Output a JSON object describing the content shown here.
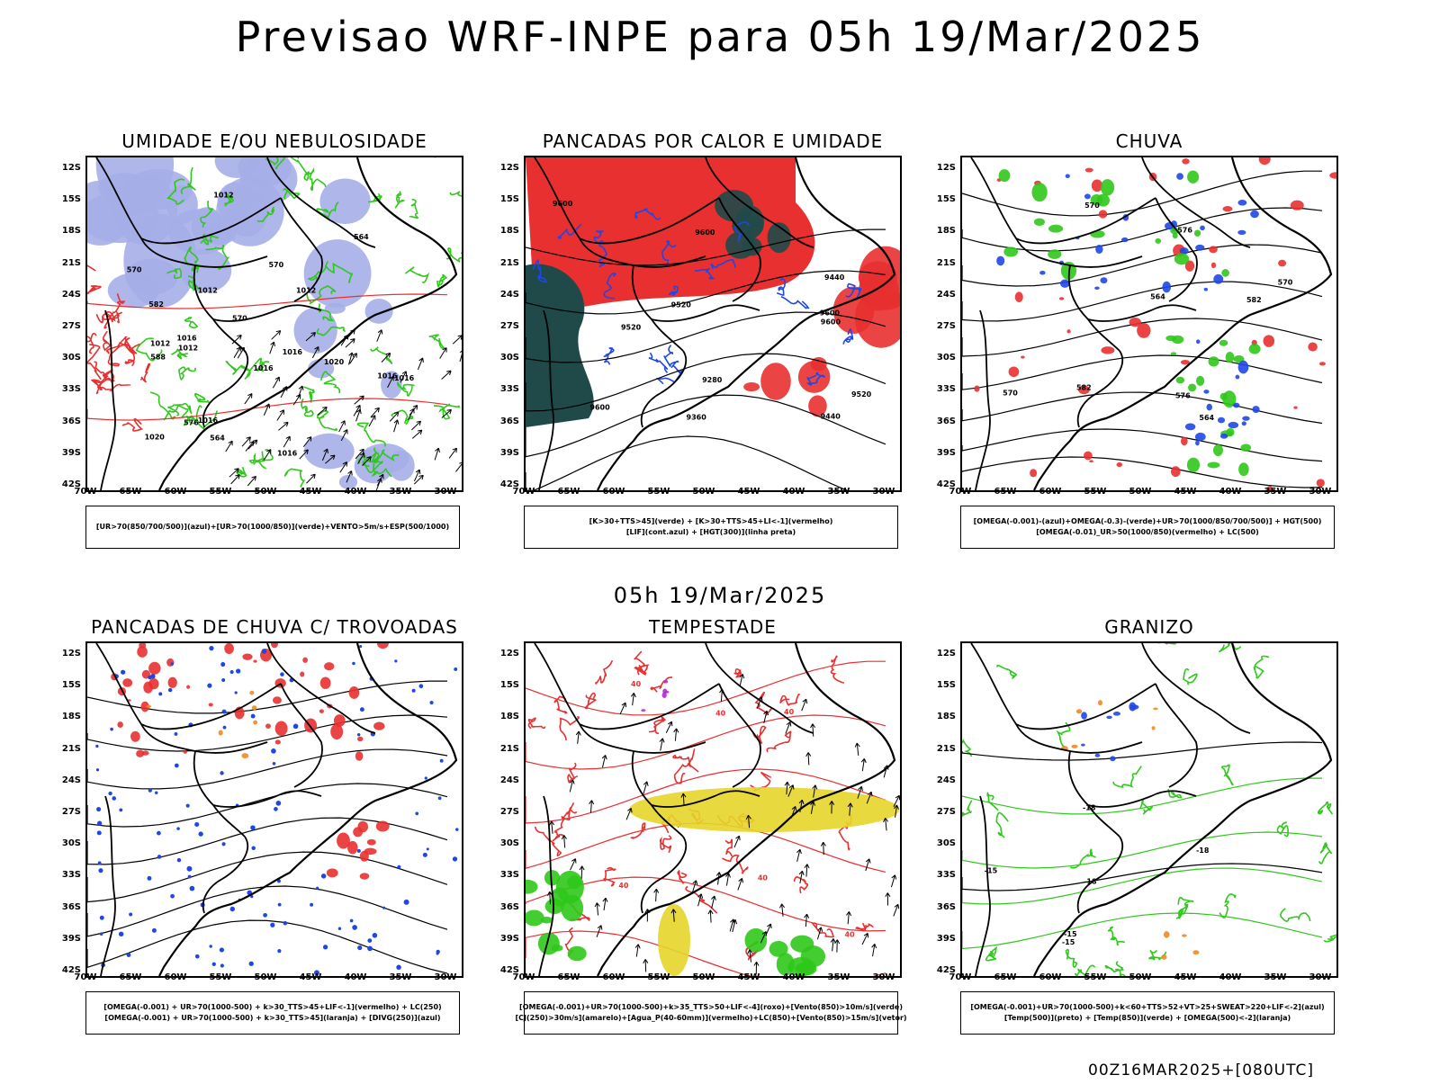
{
  "main_title": "Previsao WRF-INPE  para 05h 19/Mar/2025",
  "mid_title": "05h 19/Mar/2025",
  "footer": "00Z16MAR2025+[080UTC]",
  "axes": {
    "y_ticks": [
      "12S",
      "15S",
      "18S",
      "21S",
      "24S",
      "27S",
      "30S",
      "33S",
      "36S",
      "39S",
      "42S"
    ],
    "x_ticks": [
      "70W",
      "65W",
      "60W",
      "55W",
      "50W",
      "45W",
      "40W",
      "35W",
      "30W"
    ]
  },
  "colors": {
    "lightblue": "#a6aee8",
    "green": "#2fc81b",
    "red": "#e83030",
    "blue": "#1f47e6",
    "darkteal": "#1f4a49",
    "yellow": "#e6d52a",
    "orange": "#ef8a22",
    "purple": "#b12bd0",
    "black": "#000000"
  },
  "chart_data": [
    {
      "type": "map",
      "title": "UMIDADE E/OU NEBULOSIDADE",
      "legend": [
        "[UR>70(850/700/500)](azul)+[UR>70(1000/850)](verde)+VENTO>5m/s+ESP(500/1000)"
      ],
      "contour_labels": [
        "1012",
        "1012",
        "1012",
        "1012",
        "1016",
        "1016",
        "1012",
        "1020",
        "1016",
        "1016",
        "1016",
        "1020",
        "1016",
        "1016",
        "570",
        "570",
        "570",
        "564",
        "564",
        "582",
        "588",
        "576"
      ]
    },
    {
      "type": "map",
      "title": "PANCADAS POR CALOR E UMIDADE",
      "legend": [
        "[K>30+TTS>45](verde) + [K>30+TTS>45+LI<-1](vermelho)",
        "[LIF](cont.azul) + [HGT(300)](linha preta)"
      ],
      "contour_labels": [
        "9600",
        "9600",
        "9600",
        "9600",
        "9600",
        "9520",
        "9520",
        "9520",
        "9440",
        "9360",
        "9280",
        "9440"
      ]
    },
    {
      "type": "map",
      "title": "CHUVA",
      "legend": [
        "[OMEGA(-0.001)-(azul)+OMEGA(-0.3)-(verde)+UR>70(1000/850/700/500)] + HGT(500)",
        "[OMEGA(-0.01)_UR>50(1000/850)(vermelho) + LC(500)"
      ],
      "contour_labels": [
        "582",
        "576",
        "582",
        "570",
        "564",
        "570",
        "576",
        "570",
        "564"
      ]
    },
    {
      "type": "map",
      "title": "PANCADAS DE CHUVA C/ TROVOADAS",
      "legend": [
        "[OMEGA(-0.001) + UR>70(1000-500) + k>30_TTS>45+LIF<-1](vermelho) + LC(250)",
        "[OMEGA(-0.001) + UR>70(1000-500) + k>30_TTS>45](laranja) + [DIVG(250)](azul)"
      ],
      "contour_labels": []
    },
    {
      "type": "map",
      "title": "TEMPESTADE",
      "legend": [
        "[OMEGA(-0.001)+UR>70(1000-500)+k>35_TTS>50+LIF<-4](roxo)+[Vento(850)>10m/s](verde)",
        "[CJ(250)>30m/s](amarelo)+[Agua_P(40-60mm)](vermelho)+LC(850)+[Vento(850)>15m/s](vetor)"
      ],
      "contour_labels": [
        "40",
        "40",
        "40",
        "40",
        "40",
        "40"
      ]
    },
    {
      "type": "map",
      "title": "GRANIZO",
      "legend": [
        "[OMEGA(-0.001)+UR>70(1000-500)+k<60+TTS>52+VT>25+SWEAT>220+LIF<-2](azul)",
        "[Temp(500)](preto) + [Temp(850)](verde) + [OMEGA(500)<-2](laranja)"
      ],
      "contour_labels": [
        "-15",
        "-15",
        "-15",
        "-18",
        "-18",
        "-18"
      ]
    }
  ]
}
